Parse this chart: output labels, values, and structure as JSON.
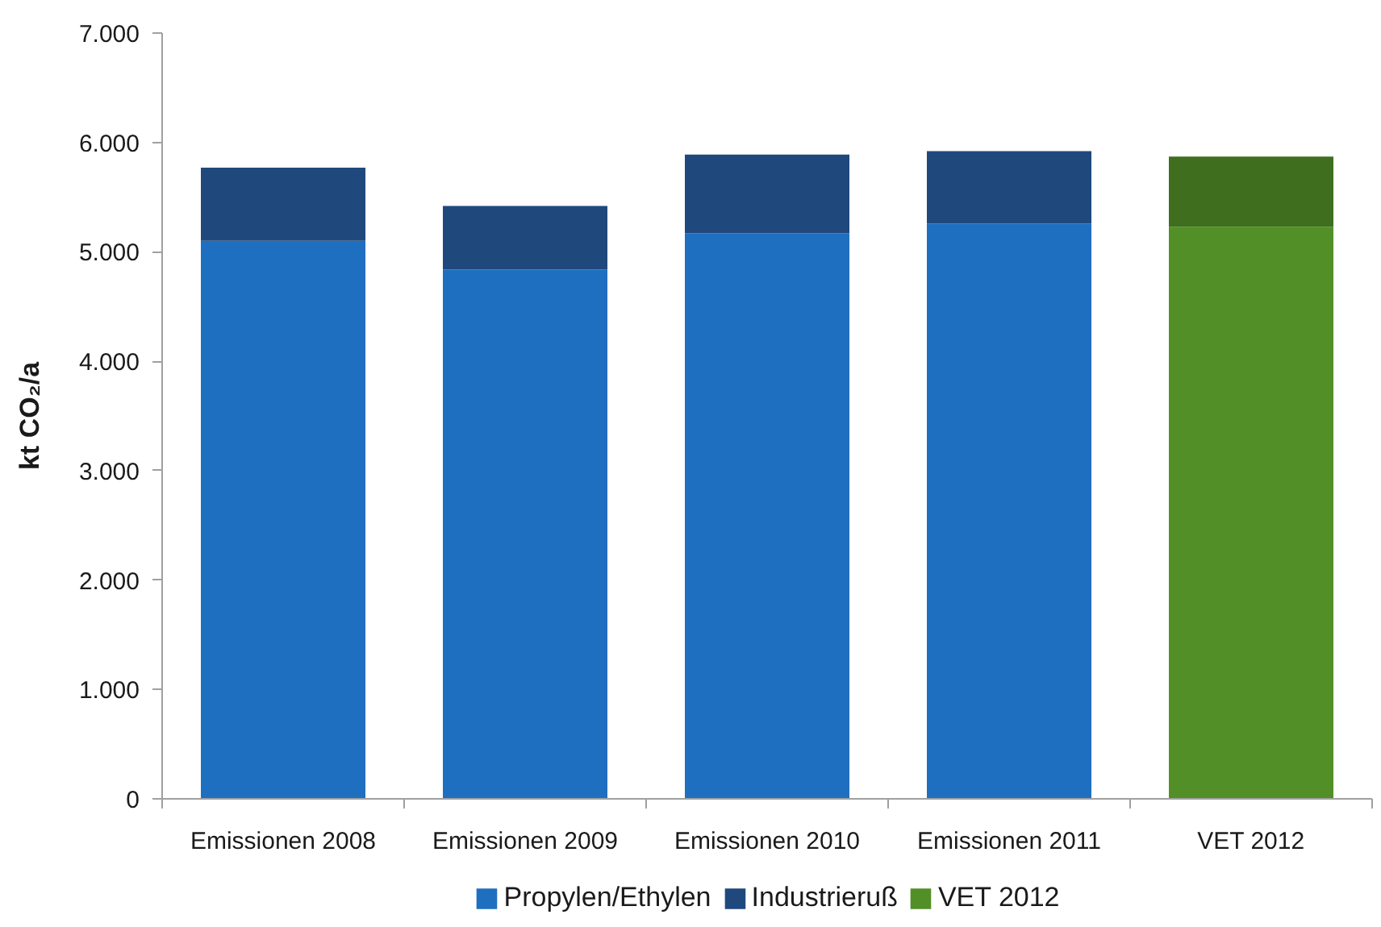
{
  "chart_data": {
    "type": "bar",
    "ylabel": "kt CO₂/a",
    "categories": [
      "Emissionen 2008",
      "Emissionen 2009",
      "Emissionen 2010",
      "Emissionen 2011",
      "VET 2012"
    ],
    "series": [
      {
        "name": "Propylen/Ethylen",
        "color": "#1f6fc0",
        "values": [
          5100,
          4840,
          5170,
          5260,
          null
        ]
      },
      {
        "name": "Industrieruß",
        "color": "#1f497d",
        "values": [
          670,
          580,
          720,
          660,
          null
        ]
      },
      {
        "name": "VET 2012",
        "color": "#538f27",
        "values": [
          null,
          null,
          null,
          null,
          5230
        ]
      },
      {
        "color": "#3f6e1f",
        "values": [
          null,
          null,
          null,
          null,
          640
        ]
      }
    ],
    "stacked": true,
    "ylim": [
      0,
      7000
    ],
    "yticks": [
      0,
      {
        "value": 1000,
        "label": "1.000"
      },
      {
        "value": 2000,
        "label": "2.000"
      },
      {
        "value": 3000,
        "label": "3.000"
      },
      {
        "value": 4000,
        "label": "4.000"
      },
      {
        "value": 5000,
        "label": "5.000"
      },
      {
        "value": 6000,
        "label": "6.000"
      },
      {
        "value": 7000,
        "label": "7.000"
      }
    ],
    "legend": "bottom"
  }
}
